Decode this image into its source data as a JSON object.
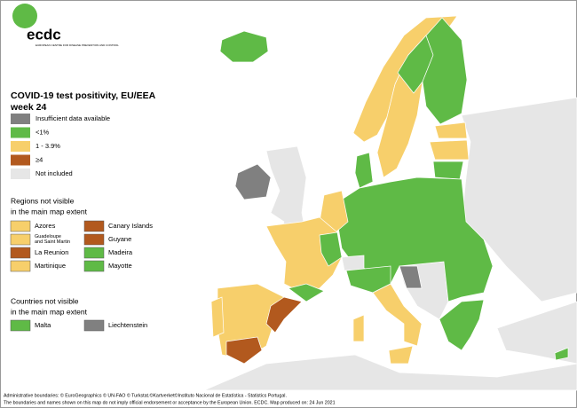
{
  "logo": {
    "name": "ecdc",
    "subtitle": "EUROPEAN CENTRE FOR DISEASE PREVENTION AND CONTROL"
  },
  "title": [
    "COVID-19 test positivity, EU/EEA",
    "week 24"
  ],
  "legend": {
    "items": [
      {
        "label": "Insufficient data available",
        "color": "#808080"
      },
      {
        "label": "<1%",
        "color": "#5fba46"
      },
      {
        "label": "1 - 3.9%",
        "color": "#f7cf6b"
      },
      {
        "label": "≥4",
        "color": "#b2591e"
      },
      {
        "label": "Not included",
        "color": "#e6e6e6"
      }
    ]
  },
  "regions": {
    "heading": [
      "Regions not visible",
      "in the main map extent"
    ],
    "items": [
      {
        "label": "Azores",
        "color": "#f7cf6b"
      },
      {
        "label": "Canary Islands",
        "color": "#b2591e"
      },
      {
        "label": "Guadeloupe and Saint Martin",
        "color": "#f7cf6b"
      },
      {
        "label": "Guyane",
        "color": "#b2591e"
      },
      {
        "label": "La Reunion",
        "color": "#b2591e"
      },
      {
        "label": "Madeira",
        "color": "#5fba46"
      },
      {
        "label": "Martinique",
        "color": "#f7cf6b"
      },
      {
        "label": "Mayotte",
        "color": "#5fba46"
      }
    ]
  },
  "countries": {
    "heading": [
      "Countries not visible",
      "in the main map extent"
    ],
    "items": [
      {
        "label": "Malta",
        "color": "#5fba46"
      },
      {
        "label": "Liechtenstein",
        "color": "#808080"
      }
    ]
  },
  "footer": [
    "Administrative boundaries: © EuroGeographics © UN-FAO © Turkstat.©Kartverket©Instituto Nacional de Estatística - Statistics Portugal.",
    "The boundaries and names shown on this map do not imply official endorsement or acceptance by the European Union. ECDC. Map produced on: 24 Jun 2021"
  ]
}
